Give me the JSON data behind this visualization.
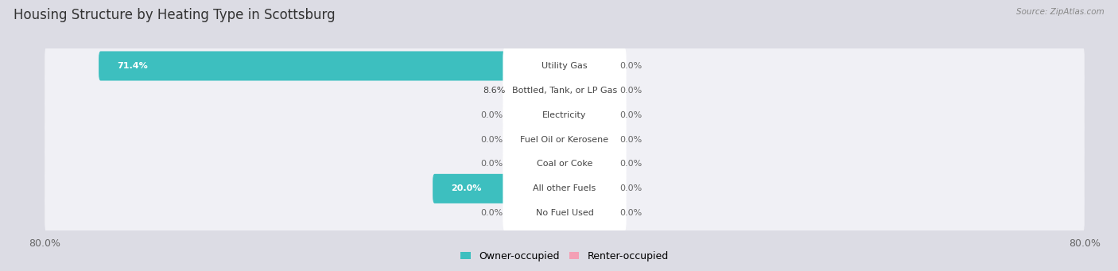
{
  "title": "Housing Structure by Heating Type in Scottsburg",
  "source": "Source: ZipAtlas.com",
  "categories": [
    "Utility Gas",
    "Bottled, Tank, or LP Gas",
    "Electricity",
    "Fuel Oil or Kerosene",
    "Coal or Coke",
    "All other Fuels",
    "No Fuel Used"
  ],
  "owner_values": [
    71.4,
    8.6,
    0.0,
    0.0,
    0.0,
    20.0,
    0.0
  ],
  "renter_values": [
    0.0,
    0.0,
    0.0,
    0.0,
    0.0,
    0.0,
    0.0
  ],
  "owner_color": "#3DBFBF",
  "renter_color": "#F4A0B5",
  "axis_min": -80.0,
  "axis_max": 80.0,
  "min_bar_width": 8.0,
  "bg_color": "#e8e8ec",
  "row_bg_color": "#f0f0f5",
  "title_fontsize": 12,
  "value_fontsize": 8,
  "label_fontsize": 8,
  "tick_fontsize": 9
}
